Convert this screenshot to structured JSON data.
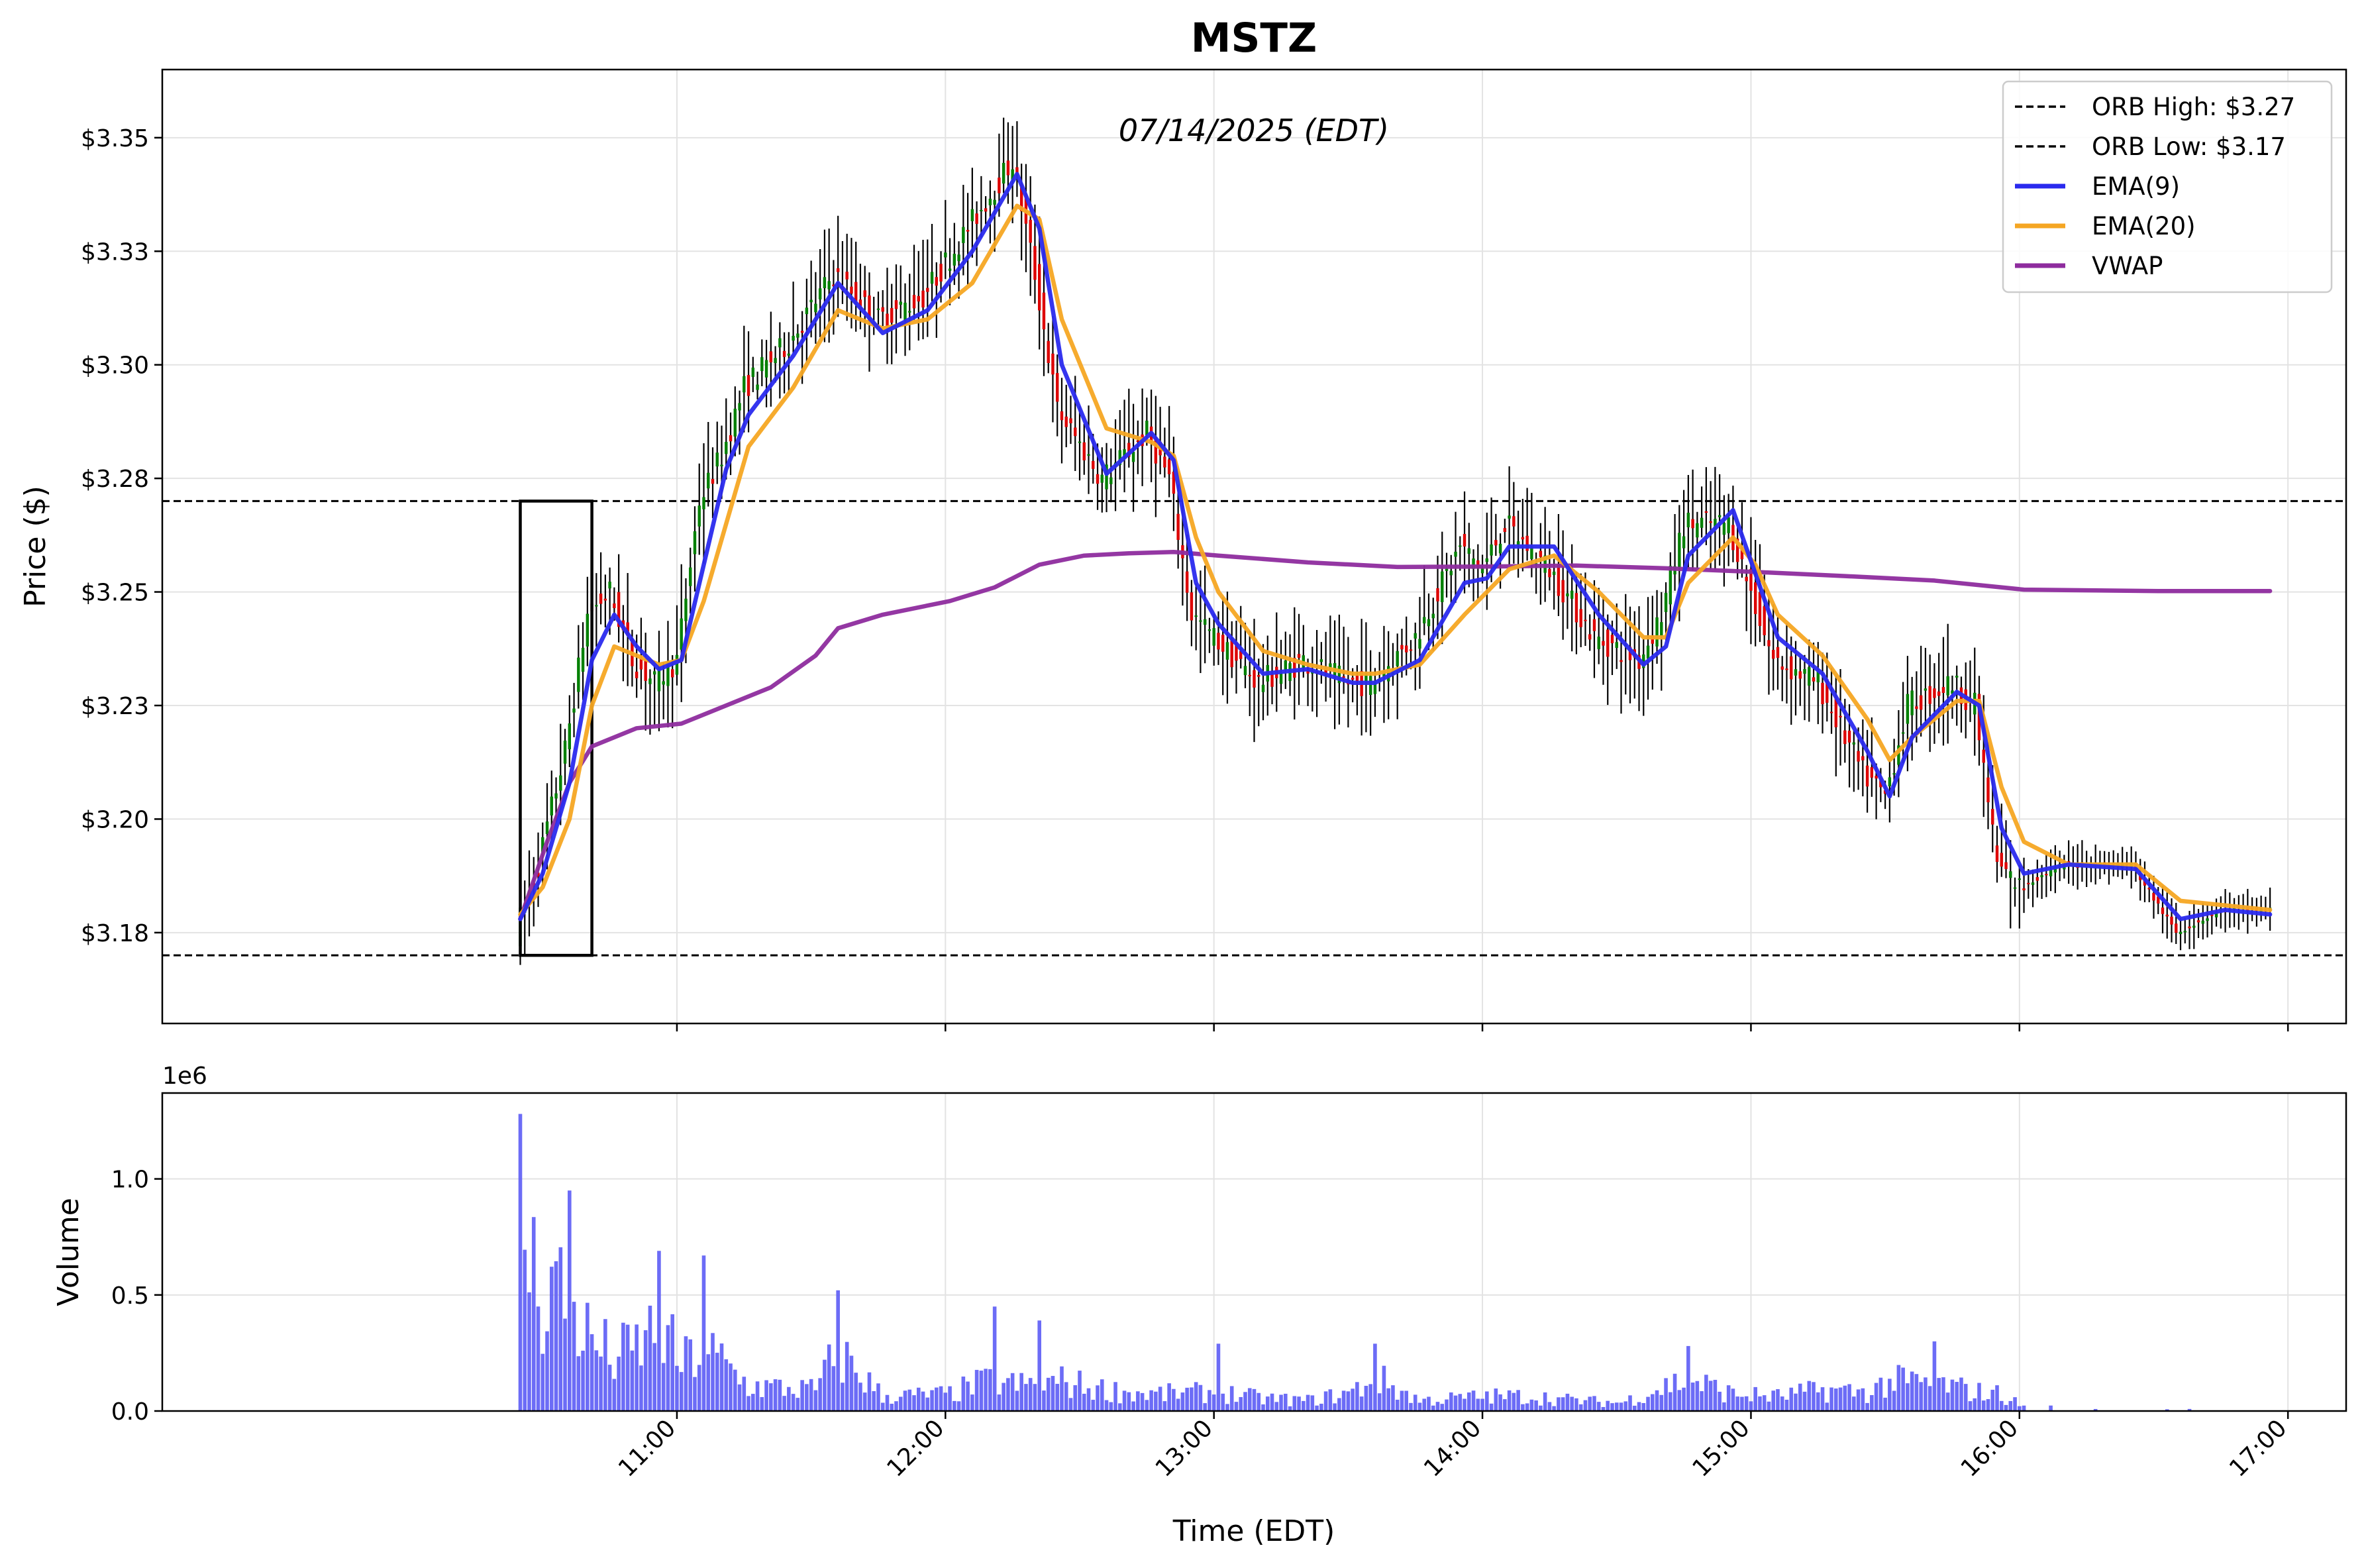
{
  "chart_data": [
    {
      "type": "candlestick",
      "title": "MSTZ",
      "subtitle": "07/14/2025 (EDT)",
      "ylabel": "Price ($)",
      "xlabel": "Time (EDT)",
      "ylim": [
        3.155,
        3.365
      ],
      "x_ticks": [
        "11:00",
        "12:00",
        "13:00",
        "14:00",
        "15:00",
        "16:00",
        "17:00"
      ],
      "y_ticks": [
        "$3.18",
        "$3.20",
        "$3.23",
        "$3.25",
        "$3.28",
        "$3.30",
        "$3.33",
        "$3.35"
      ],
      "y_tick_values": [
        3.175,
        3.2,
        3.225,
        3.25,
        3.275,
        3.3,
        3.325,
        3.35
      ],
      "grid": true,
      "legend_position": "top-right",
      "reference_lines": [
        {
          "name": "ORB High: $3.27",
          "value": 3.27,
          "color": "#000000",
          "style": "dashed"
        },
        {
          "name": "ORB Low: $3.17",
          "value": 3.17,
          "color": "#000000",
          "style": "dashed"
        }
      ],
      "orb_box": {
        "start": "10:25",
        "end": "10:41",
        "high": 3.27,
        "low": 3.17
      },
      "candle_colors": {
        "up": "#008000",
        "down": "#dd0000",
        "wick": "#000000"
      },
      "price_keyframes": {
        "times": [
          "10:25",
          "10:30",
          "10:36",
          "10:41",
          "10:46",
          "10:51",
          "10:56",
          "11:01",
          "11:06",
          "11:11",
          "11:16",
          "11:21",
          "11:26",
          "11:36",
          "11:46",
          "11:56",
          "12:06",
          "12:16",
          "12:21",
          "12:26",
          "12:36",
          "12:46",
          "12:51",
          "12:56",
          "13:01",
          "13:11",
          "13:21",
          "13:31",
          "13:36",
          "13:46",
          "13:56",
          "14:01",
          "14:06",
          "14:16",
          "14:26",
          "14:36",
          "14:41",
          "14:46",
          "14:56",
          "15:01",
          "15:06",
          "15:16",
          "15:26",
          "15:31",
          "15:36",
          "15:46",
          "15:51",
          "15:56",
          "16:01",
          "16:11",
          "16:26",
          "16:36",
          "16:46",
          "16:56"
        ],
        "values": [
          3.175,
          3.19,
          3.215,
          3.245,
          3.25,
          3.235,
          3.23,
          3.235,
          3.27,
          3.28,
          3.295,
          3.3,
          3.305,
          3.32,
          3.31,
          3.315,
          3.33,
          3.345,
          3.32,
          3.29,
          3.275,
          3.285,
          3.275,
          3.245,
          3.24,
          3.23,
          3.235,
          3.23,
          3.23,
          3.24,
          3.26,
          3.255,
          3.265,
          3.255,
          3.24,
          3.235,
          3.245,
          3.265,
          3.265,
          3.25,
          3.235,
          3.23,
          3.21,
          3.205,
          3.225,
          3.23,
          3.225,
          3.19,
          3.185,
          3.19,
          3.19,
          3.175,
          3.18,
          3.18
        ]
      }
    },
    {
      "type": "line",
      "series": [
        {
          "name": "EMA(9)",
          "color": "#2a2aee",
          "x": [
            "10:25",
            "10:30",
            "10:36",
            "10:41",
            "10:46",
            "10:51",
            "10:56",
            "11:01",
            "11:06",
            "11:11",
            "11:16",
            "11:26",
            "11:36",
            "11:46",
            "11:56",
            "12:06",
            "12:16",
            "12:21",
            "12:26",
            "12:36",
            "12:46",
            "12:51",
            "12:56",
            "13:01",
            "13:11",
            "13:21",
            "13:31",
            "13:36",
            "13:46",
            "13:56",
            "14:01",
            "14:06",
            "14:16",
            "14:26",
            "14:36",
            "14:41",
            "14:46",
            "14:56",
            "15:01",
            "15:06",
            "15:16",
            "15:26",
            "15:31",
            "15:36",
            "15:46",
            "15:51",
            "15:56",
            "16:01",
            "16:11",
            "16:26",
            "16:36",
            "16:46",
            "16:56"
          ],
          "values": [
            3.178,
            3.188,
            3.208,
            3.235,
            3.245,
            3.238,
            3.233,
            3.235,
            3.256,
            3.277,
            3.289,
            3.302,
            3.318,
            3.307,
            3.312,
            3.325,
            3.342,
            3.33,
            3.3,
            3.276,
            3.285,
            3.279,
            3.252,
            3.243,
            3.232,
            3.233,
            3.23,
            3.23,
            3.235,
            3.252,
            3.253,
            3.26,
            3.26,
            3.245,
            3.234,
            3.238,
            3.258,
            3.268,
            3.254,
            3.24,
            3.232,
            3.215,
            3.205,
            3.218,
            3.228,
            3.225,
            3.198,
            3.188,
            3.19,
            3.189,
            3.178,
            3.18,
            3.179
          ]
        },
        {
          "name": "EMA(20)",
          "color": "#f5a623",
          "x": [
            "10:25",
            "10:30",
            "10:36",
            "10:41",
            "10:46",
            "10:51",
            "10:56",
            "11:01",
            "11:06",
            "11:11",
            "11:16",
            "11:26",
            "11:36",
            "11:46",
            "11:56",
            "12:06",
            "12:16",
            "12:21",
            "12:26",
            "12:36",
            "12:46",
            "12:51",
            "12:56",
            "13:01",
            "13:11",
            "13:21",
            "13:31",
            "13:36",
            "13:46",
            "13:56",
            "14:01",
            "14:06",
            "14:16",
            "14:26",
            "14:36",
            "14:41",
            "14:46",
            "14:56",
            "15:01",
            "15:06",
            "15:16",
            "15:26",
            "15:31",
            "15:36",
            "15:46",
            "15:51",
            "15:56",
            "16:01",
            "16:11",
            "16:26",
            "16:36",
            "16:46",
            "16:56"
          ],
          "values": [
            3.179,
            3.185,
            3.2,
            3.225,
            3.238,
            3.236,
            3.234,
            3.235,
            3.248,
            3.265,
            3.282,
            3.295,
            3.312,
            3.308,
            3.31,
            3.318,
            3.335,
            3.332,
            3.31,
            3.286,
            3.283,
            3.28,
            3.262,
            3.25,
            3.237,
            3.234,
            3.232,
            3.232,
            3.234,
            3.245,
            3.25,
            3.255,
            3.258,
            3.25,
            3.24,
            3.24,
            3.252,
            3.262,
            3.256,
            3.245,
            3.236,
            3.222,
            3.213,
            3.218,
            3.226,
            3.226,
            3.207,
            3.195,
            3.19,
            3.19,
            3.182,
            3.181,
            3.18
          ]
        },
        {
          "name": "VWAP",
          "color": "#8e2c9e",
          "x": [
            "10:25",
            "10:31",
            "10:36",
            "10:41",
            "10:51",
            "11:01",
            "11:11",
            "11:21",
            "11:31",
            "11:36",
            "11:46",
            "12:01",
            "12:11",
            "12:21",
            "12:31",
            "12:41",
            "12:51",
            "13:01",
            "13:21",
            "13:41",
            "14:01",
            "14:21",
            "14:41",
            "15:01",
            "15:21",
            "15:41",
            "16:01",
            "16:31",
            "16:56"
          ],
          "values": [
            3.178,
            3.195,
            3.208,
            3.216,
            3.22,
            3.221,
            3.225,
            3.229,
            3.236,
            3.242,
            3.245,
            3.248,
            3.251,
            3.256,
            3.258,
            3.2585,
            3.2588,
            3.258,
            3.2565,
            3.2555,
            3.2556,
            3.2558,
            3.2552,
            3.2544,
            3.2535,
            3.2525,
            3.2505,
            3.2502,
            3.2502
          ]
        }
      ]
    },
    {
      "type": "bar",
      "ylabel": "Volume",
      "offset_label": "1e6",
      "ylim": [
        0,
        1.37
      ],
      "y_ticks": [
        "0.0",
        "0.5",
        "1.0"
      ],
      "y_tick_values": [
        0,
        0.5,
        1.0
      ],
      "color": "#5c5cf5",
      "keyframes": {
        "times": [
          "10:25",
          "10:26",
          "10:27",
          "10:30",
          "10:33",
          "10:36",
          "10:41",
          "10:46",
          "10:51",
          "10:56",
          "11:01",
          "11:06",
          "11:16",
          "11:31",
          "11:36",
          "11:46",
          "12:01",
          "12:06",
          "12:11",
          "12:16",
          "12:26",
          "12:36",
          "12:46",
          "13:01",
          "13:11",
          "13:21",
          "13:31",
          "13:36",
          "13:46",
          "14:01",
          "14:11",
          "14:21",
          "14:31",
          "14:41",
          "14:46",
          "14:56",
          "15:06",
          "15:16",
          "15:26",
          "15:31",
          "15:41",
          "15:51",
          "15:56",
          "16:01",
          "16:31",
          "16:56"
        ],
        "values": [
          1.28,
          0.9,
          0.72,
          0.55,
          0.62,
          0.5,
          0.33,
          0.25,
          0.3,
          0.4,
          0.22,
          0.3,
          0.12,
          0.1,
          0.28,
          0.07,
          0.08,
          0.12,
          0.15,
          0.12,
          0.14,
          0.1,
          0.08,
          0.09,
          0.06,
          0.05,
          0.09,
          0.16,
          0.05,
          0.07,
          0.07,
          0.05,
          0.04,
          0.12,
          0.15,
          0.08,
          0.07,
          0.1,
          0.09,
          0.14,
          0.13,
          0.09,
          0.08,
          0.02,
          0.01,
          0.01
        ]
      },
      "spikes": [
        {
          "time": "10:25",
          "value": 1.28
        },
        {
          "time": "10:36",
          "value": 0.95
        },
        {
          "time": "10:56",
          "value": 0.69
        },
        {
          "time": "11:06",
          "value": 0.67
        },
        {
          "time": "11:36",
          "value": 0.52
        },
        {
          "time": "12:11",
          "value": 0.45
        },
        {
          "time": "12:21",
          "value": 0.39
        },
        {
          "time": "13:01",
          "value": 0.29
        },
        {
          "time": "13:36",
          "value": 0.29
        },
        {
          "time": "14:46",
          "value": 0.28
        },
        {
          "time": "15:41",
          "value": 0.3
        }
      ]
    }
  ]
}
